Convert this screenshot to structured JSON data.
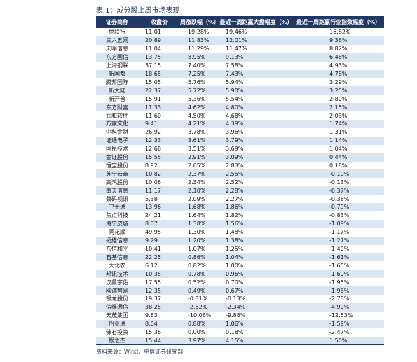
{
  "title": "表 1：成分股上周市场表现",
  "table": {
    "header": [
      "证券简称",
      "收盘价",
      "周涨跌幅（%）",
      "最近一周跑赢大盘幅度（%）",
      "最近一周跑赢行业指数幅度（%）"
    ],
    "rows": [
      [
        "世联行",
        "11.01",
        "19.28%",
        "19.46%",
        "16.82%"
      ],
      [
        "三六五网",
        "20.89",
        "11.83%",
        "12.01%",
        "9.36%"
      ],
      [
        "天喻信息",
        "11.04",
        "11.29%",
        "11.47%",
        "8.82%"
      ],
      [
        "东方国信",
        "13.75",
        "8.95%",
        "9.13%",
        "6.48%"
      ],
      [
        "上海钢联",
        "37.15",
        "7.40%",
        "7.58%",
        "4.93%"
      ],
      [
        "新国都",
        "18.65",
        "7.25%",
        "7.43%",
        "4.78%"
      ],
      [
        "腾邦国际",
        "15.05",
        "5.76%",
        "5.94%",
        "3.29%"
      ],
      [
        "新大陆",
        "22.37",
        "5.72%",
        "5.90%",
        "3.25%"
      ],
      [
        "新开普",
        "15.91",
        "5.36%",
        "5.54%",
        "2.89%"
      ],
      [
        "东方财富",
        "11.33",
        "4.62%",
        "4.80%",
        "2.15%"
      ],
      [
        "润和软件",
        "11.60",
        "4.50%",
        "4.68%",
        "2.03%"
      ],
      [
        "万家文化",
        "9.41",
        "4.21%",
        "4.39%",
        "1.74%"
      ],
      [
        "中科金财",
        "26.92",
        "3.78%",
        "3.96%",
        "1.31%"
      ],
      [
        "证通电子",
        "12.33",
        "3.61%",
        "3.79%",
        "1.14%"
      ],
      [
        "国民技术",
        "12.68",
        "3.51%",
        "3.69%",
        "1.04%"
      ],
      [
        "金证股份",
        "15.55",
        "2.91%",
        "3.09%",
        "0.44%"
      ],
      [
        "恒宝股份",
        "8.92",
        "2.65%",
        "2.83%",
        "0.18%"
      ],
      [
        "苏宁云商",
        "10.82",
        "2.37%",
        "2.55%",
        "-0.10%"
      ],
      [
        "高鸿股份",
        "10.06",
        "2.34%",
        "2.52%",
        "-0.13%"
      ],
      [
        "南天信息",
        "11.17",
        "2.10%",
        "2.28%",
        "-0.37%"
      ],
      [
        "数码视讯",
        "5.38",
        "2.09%",
        "2.27%",
        "-0.38%"
      ],
      [
        "卫士通",
        "13.96",
        "1.68%",
        "1.86%",
        "-0.79%"
      ],
      [
        "焦点科技",
        "24.21",
        "1.64%",
        "1.82%",
        "-0.83%"
      ],
      [
        "海宁皮城",
        "8.07",
        "1.38%",
        "1.56%",
        "-1.09%"
      ],
      [
        "同花顺",
        "49.95",
        "1.30%",
        "1.48%",
        "-1.17%"
      ],
      [
        "拓维信息",
        "9.29",
        "1.20%",
        "1.38%",
        "-1.27%"
      ],
      [
        "东信和平",
        "10.41",
        "1.07%",
        "1.25%",
        "-1.40%"
      ],
      [
        "石基信息",
        "22.25",
        "0.86%",
        "1.04%",
        "-1.61%"
      ],
      [
        "大北农",
        "6.12",
        "0.82%",
        "1.00%",
        "-1.65%"
      ],
      [
        "邦讯技术",
        "10.35",
        "0.78%",
        "0.96%",
        "-1.69%"
      ],
      [
        "汉鼎宇佑",
        "17.55",
        "0.52%",
        "0.70%",
        "-1.95%"
      ],
      [
        "欧浦智网",
        "12.35",
        "0.49%",
        "0.67%",
        "-1.98%"
      ],
      [
        "银龙股份",
        "19.37",
        "-0.31%",
        "-0.13%",
        "-2.78%"
      ],
      [
        "信维通信",
        "38.25",
        "-2.52%",
        "-2.34%",
        "-4.99%"
      ],
      [
        "天茂集团",
        "9.83",
        "-10.06%",
        "-9.88%",
        "-12.53%"
      ],
      [
        "怡亚通",
        "8.04",
        "0.88%",
        "1.06%",
        "-1.59%"
      ],
      [
        "佛石投资",
        "15.36",
        "0.00%",
        "0.18%",
        "-2.47%"
      ],
      [
        "银之杰",
        "15.44",
        "3.97%",
        "4.15%",
        "1.50%"
      ]
    ]
  },
  "source": "资料来源：Wind，中信证券研究部"
}
